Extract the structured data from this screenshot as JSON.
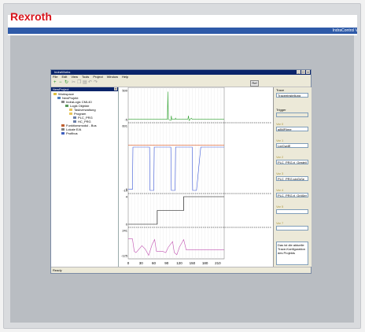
{
  "device": {
    "logo": "Rexroth",
    "product": "IndraControl V"
  },
  "window": {
    "title": "IndraWorks",
    "controls": [
      "_",
      "□",
      "×"
    ]
  },
  "menu": [
    "File",
    "Edit",
    "View",
    "Tools",
    "Project",
    "Window",
    "Help"
  ],
  "toolbar": {
    "icons": [
      "add-icon",
      "remove-icon",
      "refresh-icon"
    ],
    "button_label": "Ref"
  },
  "tree": {
    "title": "NewProject",
    "nodes": [
      {
        "label": "Workspace",
        "level": 0,
        "icon": "workspace-icon"
      },
      {
        "label": "NewProjekt",
        "level": 1,
        "icon": "project-icon"
      },
      {
        "label": "IndraLogic CML40",
        "level": 2,
        "icon": "controller-icon"
      },
      {
        "label": "Logik Objekte",
        "level": 3,
        "icon": "logic-icon"
      },
      {
        "label": "Taskverwaltung",
        "level": 4,
        "icon": "folder-icon"
      },
      {
        "label": "Program",
        "level": 4,
        "icon": "folder-icon"
      },
      {
        "label": "PLC_PRG",
        "level": 5,
        "icon": "program-icon"
      },
      {
        "label": "HC_PRG",
        "level": 5,
        "icon": "program-icon"
      },
      {
        "label": "Funktionsmodul - Bus",
        "level": 2,
        "icon": "module-icon"
      },
      {
        "label": "Lokale E/A",
        "level": 2,
        "icon": "io-icon"
      },
      {
        "label": "Profibus",
        "level": 2,
        "icon": "bus-icon"
      }
    ]
  },
  "status": "Ready",
  "trace": {
    "section_label": "Trace",
    "trace_value": "Traceeinstellung",
    "trigger_label": "Trigger",
    "vars": [
      {
        "label": "Var 0",
        "value": "g8MFlime"
      },
      {
        "label": "Var 1",
        "value": "LgrCwdE"
      },
      {
        "label": "Var 2",
        "value": "PLC_PRG.ri_Gesteil"
      },
      {
        "label": "Var 3",
        "value": "PLC_PRG.sinGrße"
      },
      {
        "label": "Var 4",
        "value": "PLC_PRG.rl_Größer"
      },
      {
        "label": "Var 5",
        "value": ""
      },
      {
        "label": "Var 7",
        "value": ""
      }
    ],
    "note": "Das ist die aktuelle Trace-Konfiguration des Projekts"
  },
  "chart_data": {
    "type": "line",
    "x_ticks": [
      0,
      30,
      60,
      90,
      120,
      150,
      180,
      210
    ],
    "xlim": [
      0,
      225
    ],
    "panels": [
      {
        "ylim": [
          -5,
          500
        ],
        "y_ticks": [
          500,
          -5
        ],
        "color": "#2ca02c",
        "points": [
          [
            0,
            0
          ],
          [
            92,
            0
          ],
          [
            93,
            480
          ],
          [
            94,
            0
          ],
          [
            100,
            -20
          ],
          [
            101,
            60
          ],
          [
            102,
            0
          ],
          [
            110,
            0
          ],
          [
            111,
            20
          ],
          [
            112,
            0
          ],
          [
            140,
            0
          ],
          [
            141,
            60
          ],
          [
            143,
            -20
          ],
          [
            148,
            20
          ],
          [
            150,
            0
          ],
          [
            225,
            0
          ]
        ]
      },
      {
        "ylim": [
          -10,
          601
        ],
        "y_ticks": [
          601,
          0,
          -10
        ],
        "color": "#3a56d6",
        "points": [
          [
            0,
            0
          ],
          [
            10,
            0
          ],
          [
            11,
            400
          ],
          [
            50,
            400
          ],
          [
            51,
            -10
          ],
          [
            60,
            -10
          ],
          [
            61,
            400
          ],
          [
            100,
            400
          ],
          [
            101,
            -10
          ],
          [
            110,
            -10
          ],
          [
            111,
            400
          ],
          [
            150,
            400
          ],
          [
            151,
            -10
          ],
          [
            160,
            -10
          ],
          [
            170,
            400
          ],
          [
            225,
            400
          ]
        ]
      },
      {
        "ylim": [
          -10,
          601
        ],
        "y_ticks": [],
        "color": "#d9541e",
        "points": [
          [
            0,
            420
          ],
          [
            225,
            420
          ]
        ]
      },
      {
        "ylim": [
          0,
          4
        ],
        "y_ticks": [
          4,
          0
        ],
        "color": "#000000",
        "points": [
          [
            0,
            0
          ],
          [
            68,
            0
          ],
          [
            68,
            2
          ],
          [
            130,
            2
          ],
          [
            130,
            4
          ],
          [
            225,
            4
          ]
        ]
      },
      {
        "ylim": [
          -125,
          241
        ],
        "y_ticks": [
          241,
          -125
        ],
        "color": "#c050b0",
        "points": [
          [
            0,
            120
          ],
          [
            10,
            120
          ],
          [
            14,
            -60
          ],
          [
            18,
            -80
          ],
          [
            24,
            -40
          ],
          [
            32,
            20
          ],
          [
            40,
            -30
          ],
          [
            48,
            -120
          ],
          [
            56,
            40
          ],
          [
            62,
            110
          ],
          [
            66,
            -60
          ],
          [
            80,
            -60
          ],
          [
            88,
            -80
          ],
          [
            94,
            0
          ],
          [
            104,
            80
          ],
          [
            108,
            -80
          ],
          [
            114,
            -110
          ],
          [
            120,
            0
          ],
          [
            130,
            110
          ],
          [
            136,
            -40
          ],
          [
            150,
            -40
          ],
          [
            225,
            -40
          ]
        ]
      }
    ]
  }
}
